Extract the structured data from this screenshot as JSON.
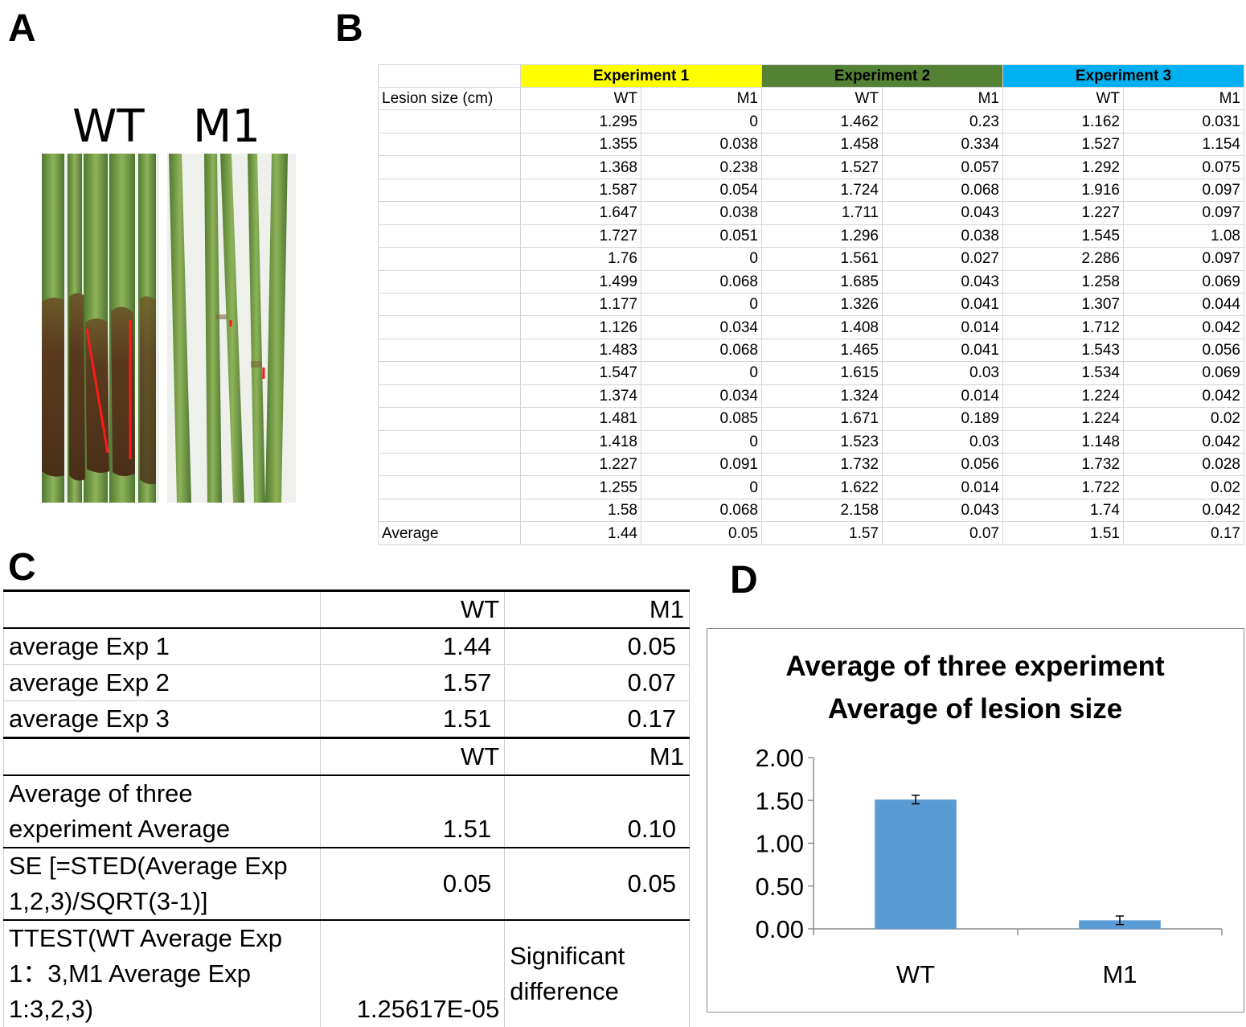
{
  "panel_labels": {
    "a": "A",
    "b": "B",
    "c": "C",
    "d": "D"
  },
  "panelA": {
    "wt_label": "WT",
    "m1_label": "M1"
  },
  "panelB": {
    "experiments": [
      "Experiment 1",
      "Experiment 2",
      "Experiment 3"
    ],
    "experiment_colors": [
      "#ffff00",
      "#548235",
      "#00b0f0"
    ],
    "row_label": "Lesion size (cm)",
    "col_headers": [
      "WT",
      "M1",
      "WT",
      "M1",
      "WT",
      "M1"
    ],
    "rows": [
      [
        "1.295",
        "0",
        "1.462",
        "0.23",
        "1.162",
        "0.031"
      ],
      [
        "1.355",
        "0.038",
        "1.458",
        "0.334",
        "1.527",
        "1.154"
      ],
      [
        "1.368",
        "0.238",
        "1.527",
        "0.057",
        "1.292",
        "0.075"
      ],
      [
        "1.587",
        "0.054",
        "1.724",
        "0.068",
        "1.916",
        "0.097"
      ],
      [
        "1.647",
        "0.038",
        "1.711",
        "0.043",
        "1.227",
        "0.097"
      ],
      [
        "1.727",
        "0.051",
        "1.296",
        "0.038",
        "1.545",
        "1.08"
      ],
      [
        "1.76",
        "0",
        "1.561",
        "0.027",
        "2.286",
        "0.097"
      ],
      [
        "1.499",
        "0.068",
        "1.685",
        "0.043",
        "1.258",
        "0.069"
      ],
      [
        "1.177",
        "0",
        "1.326",
        "0.041",
        "1.307",
        "0.044"
      ],
      [
        "1.126",
        "0.034",
        "1.408",
        "0.014",
        "1.712",
        "0.042"
      ],
      [
        "1.483",
        "0.068",
        "1.465",
        "0.041",
        "1.543",
        "0.056"
      ],
      [
        "1.547",
        "0",
        "1.615",
        "0.03",
        "1.534",
        "0.069"
      ],
      [
        "1.374",
        "0.034",
        "1.324",
        "0.014",
        "1.224",
        "0.042"
      ],
      [
        "1.481",
        "0.085",
        "1.671",
        "0.189",
        "1.224",
        "0.02"
      ],
      [
        "1.418",
        "0",
        "1.523",
        "0.03",
        "1.148",
        "0.042"
      ],
      [
        "1.227",
        "0.091",
        "1.732",
        "0.056",
        "1.732",
        "0.028"
      ],
      [
        "1.255",
        "0",
        "1.622",
        "0.014",
        "1.722",
        "0.02"
      ],
      [
        "1.58",
        "0.068",
        "2.158",
        "0.043",
        "1.74",
        "0.042"
      ]
    ],
    "average_label": "Average",
    "averages": [
      "1.44",
      "0.05",
      "1.57",
      "0.07",
      "1.51",
      "0.17"
    ]
  },
  "panelC": {
    "col_wt": "WT",
    "col_m1": "M1",
    "rows": [
      {
        "label": "average Exp 1",
        "wt": "1.44",
        "m1": "0.05"
      },
      {
        "label": "average Exp 2",
        "wt": "1.57",
        "m1": "0.07"
      },
      {
        "label": "average Exp 3",
        "wt": "1.51",
        "m1": "0.17"
      }
    ],
    "avg_label_line1": "Average of three",
    "avg_label_line2": "experiment Average",
    "avg_wt": "1.51",
    "avg_m1": "0.10",
    "se_label_line1": "SE [=STED(Average Exp",
    "se_label_line2": "1,2,3)/SQRT(3-1)]",
    "se_wt": "0.05",
    "se_m1": "0.05",
    "ttest_label_line1": "TTEST(WT Average Exp",
    "ttest_label_line2": "1：3,M1 Average Exp",
    "ttest_label_line3": "1:3,2,3)",
    "ttest_value": "1.25617E-05",
    "ttest_result_line1": "Significant",
    "ttest_result_line2": "difference"
  },
  "chart_data": {
    "type": "bar",
    "title": "Average of three experiment",
    "subtitle": "Average of lesion size",
    "categories": [
      "WT",
      "M1"
    ],
    "values": [
      1.51,
      0.1
    ],
    "errors": [
      0.05,
      0.05
    ],
    "ylim": [
      0,
      2
    ],
    "yticks": [
      "0.00",
      "0.50",
      "1.00",
      "1.50",
      "2.00"
    ],
    "bar_color": "#5b9bd5",
    "grid": false,
    "legend": false
  }
}
